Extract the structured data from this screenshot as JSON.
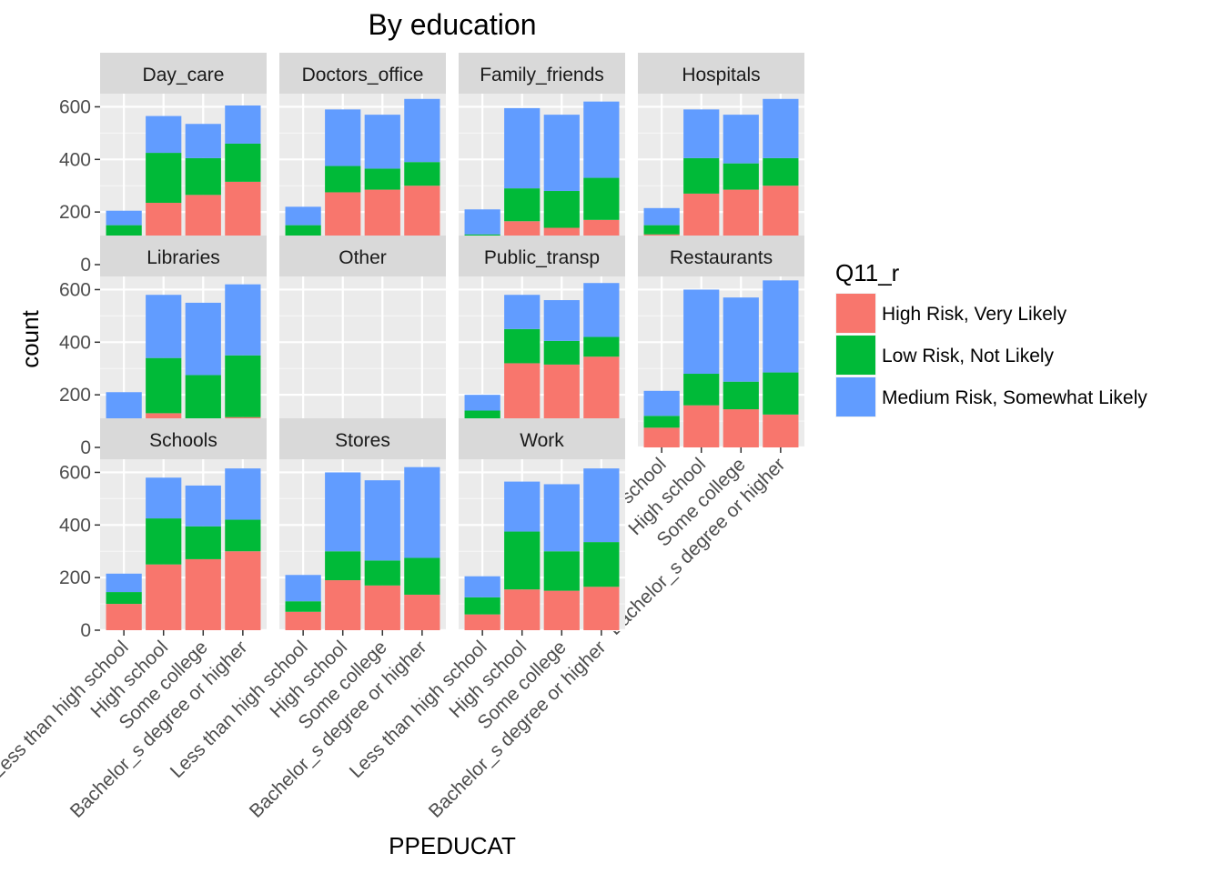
{
  "chart_data": {
    "type": "bar",
    "stacked": true,
    "title": "By education",
    "xlabel": "PPEDUCAT",
    "ylabel": "count",
    "ylim": [
      0,
      650
    ],
    "yticks": [
      0,
      200,
      400,
      600
    ],
    "categories": [
      "Less than high school",
      "High school",
      "Some college",
      "Bachelor_s degree or higher"
    ],
    "legend": {
      "title": "Q11_r",
      "placement": "right",
      "items": [
        {
          "name": "High Risk, Very Likely",
          "color": "#F8766D"
        },
        {
          "name": "Low Risk, Not Likely",
          "color": "#00BA38"
        },
        {
          "name": "Medium Risk, Somewhat Likely",
          "color": "#619CFF"
        }
      ]
    },
    "facets": [
      {
        "name": "Day_care",
        "series": [
          [
            95,
            235,
            265,
            315
          ],
          [
            55,
            190,
            140,
            145
          ],
          [
            55,
            140,
            130,
            145
          ]
        ]
      },
      {
        "name": "Doctors_office",
        "series": [
          [
            105,
            275,
            285,
            300
          ],
          [
            45,
            100,
            80,
            90
          ],
          [
            70,
            215,
            205,
            240
          ]
        ]
      },
      {
        "name": "Family_friends",
        "series": [
          [
            80,
            165,
            140,
            170
          ],
          [
            35,
            125,
            140,
            160
          ],
          [
            95,
            305,
            290,
            290
          ]
        ]
      },
      {
        "name": "Hospitals",
        "series": [
          [
            115,
            270,
            285,
            300
          ],
          [
            35,
            135,
            100,
            105
          ],
          [
            65,
            185,
            185,
            225
          ]
        ]
      },
      {
        "name": "Libraries",
        "series": [
          [
            50,
            130,
            100,
            115
          ],
          [
            60,
            210,
            175,
            235
          ],
          [
            100,
            240,
            275,
            270
          ]
        ]
      },
      {
        "name": "Other",
        "series": [
          [
            12,
            20,
            18,
            18
          ],
          [
            10,
            28,
            22,
            22
          ],
          [
            8,
            20,
            18,
            18
          ]
        ]
      },
      {
        "name": "Public_transp",
        "series": [
          [
            100,
            320,
            315,
            345
          ],
          [
            40,
            130,
            90,
            75
          ],
          [
            60,
            130,
            155,
            205
          ]
        ]
      },
      {
        "name": "Restaurants",
        "series": [
          [
            75,
            160,
            145,
            125
          ],
          [
            45,
            120,
            105,
            160
          ],
          [
            95,
            320,
            320,
            350
          ]
        ]
      },
      {
        "name": "Schools",
        "series": [
          [
            100,
            250,
            270,
            300
          ],
          [
            45,
            175,
            125,
            120
          ],
          [
            70,
            155,
            155,
            195
          ]
        ]
      },
      {
        "name": "Stores",
        "series": [
          [
            70,
            190,
            170,
            135
          ],
          [
            40,
            110,
            95,
            140
          ],
          [
            100,
            300,
            305,
            345
          ]
        ]
      },
      {
        "name": "Work",
        "series": [
          [
            60,
            155,
            150,
            165
          ],
          [
            65,
            220,
            150,
            170
          ],
          [
            80,
            190,
            255,
            280
          ]
        ]
      }
    ]
  }
}
